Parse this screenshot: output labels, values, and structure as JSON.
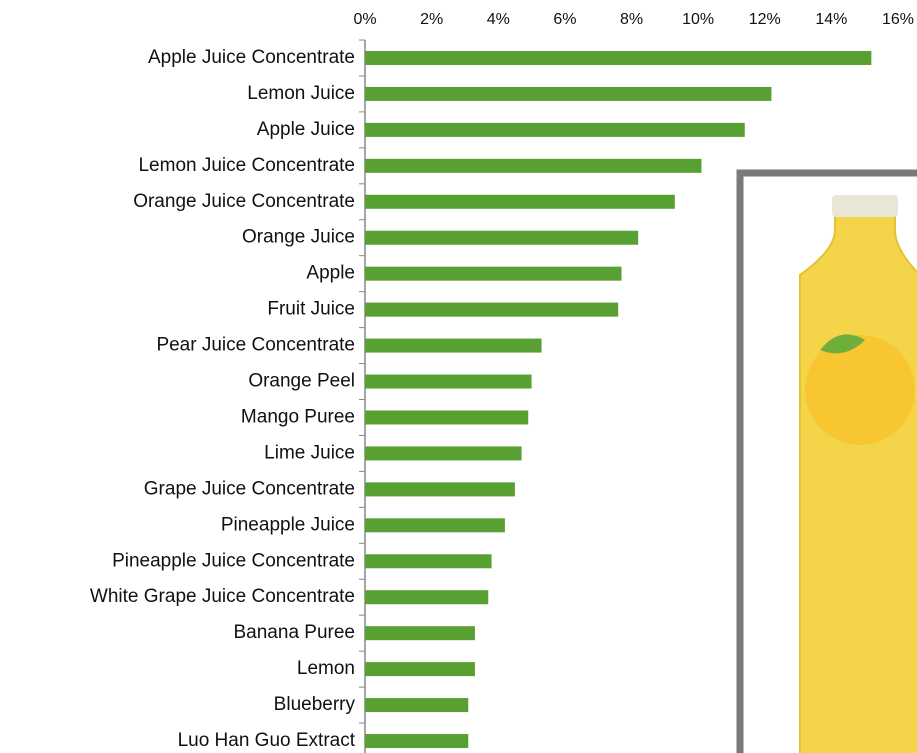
{
  "chart_data": {
    "type": "hbar",
    "categories": [
      "Apple Juice Concentrate",
      "Lemon Juice",
      "Apple Juice",
      "Lemon Juice Concentrate",
      "Orange Juice Concentrate",
      "Orange Juice",
      "Apple",
      "Fruit Juice",
      "Pear Juice Concentrate",
      "Orange Peel",
      "Mango Puree",
      "Lime Juice",
      "Grape Juice Concentrate",
      "Pineapple Juice",
      "Pineapple Juice Concentrate",
      "White Grape Juice Concentrate",
      "Banana Puree",
      "Lemon",
      "Blueberry",
      "Luo Han Guo Extract"
    ],
    "values": [
      15.2,
      12.2,
      11.4,
      10.1,
      9.3,
      8.2,
      7.7,
      7.6,
      5.3,
      5.0,
      4.9,
      4.7,
      4.5,
      4.2,
      3.8,
      3.7,
      3.3,
      3.3,
      3.1,
      3.1
    ],
    "color": "#58a031",
    "xlim": [
      0,
      16
    ],
    "xticks": [
      {
        "value": 0,
        "label": "0%"
      },
      {
        "value": 2,
        "label": "2%"
      },
      {
        "value": 4,
        "label": "4%"
      },
      {
        "value": 6,
        "label": "6%"
      },
      {
        "value": 8,
        "label": "8%"
      },
      {
        "value": 10,
        "label": "10%"
      },
      {
        "value": 12,
        "label": "12%"
      },
      {
        "value": 14,
        "label": "14%"
      },
      {
        "value": 16,
        "label": "16%"
      }
    ],
    "grid": false
  }
}
